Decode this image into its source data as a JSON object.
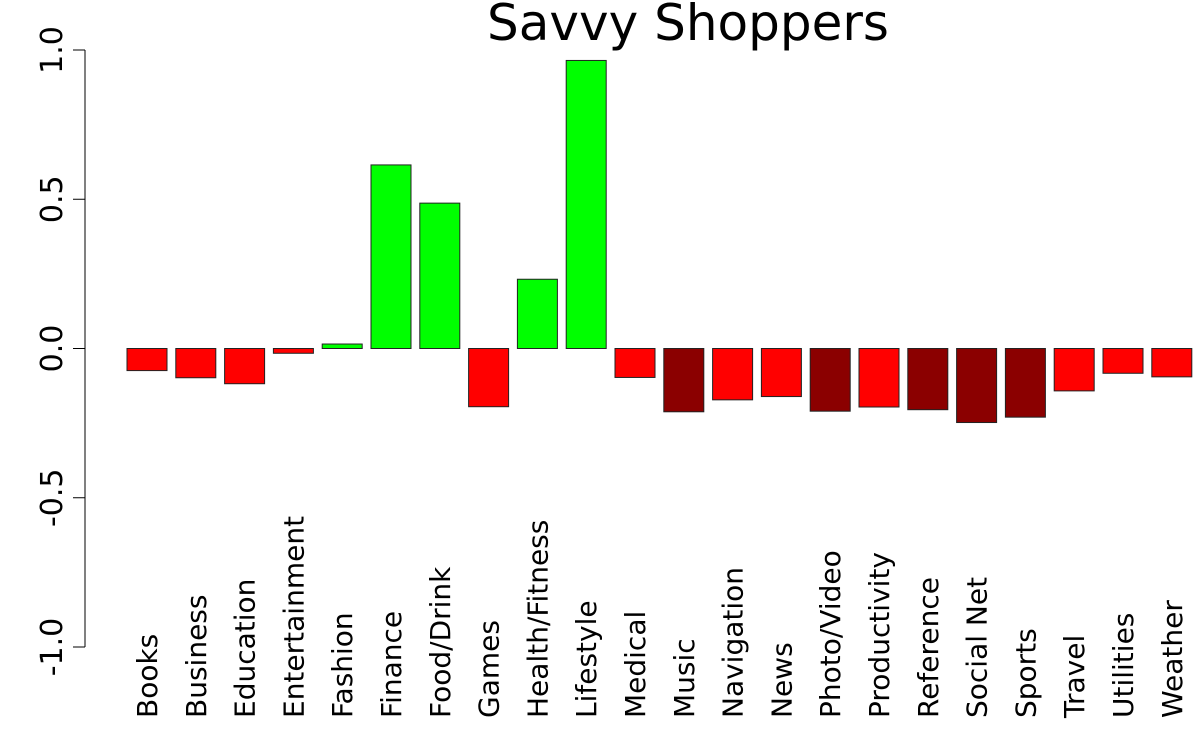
{
  "chart_data": {
    "type": "bar",
    "title": "Savvy Shoppers",
    "xlabel": "",
    "ylabel": "",
    "ylim": [
      -1.0,
      1.0
    ],
    "yticks": [
      "-1.0",
      "-0.5",
      "0.0",
      "0.5",
      "1.0"
    ],
    "grid": false,
    "categories": [
      "Books",
      "Business",
      "Education",
      "Entertainment",
      "Fashion",
      "Finance",
      "Food/Drink",
      "Games",
      "Health/Fitness",
      "Lifestyle",
      "Medical",
      "Music",
      "Navigation",
      "News",
      "Photo/Video",
      "Productivity",
      "Reference",
      "Social Net",
      "Sports",
      "Travel",
      "Utilities",
      "Weather"
    ],
    "values": [
      -0.074,
      -0.098,
      -0.118,
      -0.016,
      0.015,
      0.615,
      0.487,
      -0.195,
      0.232,
      0.965,
      -0.097,
      -0.212,
      -0.172,
      -0.161,
      -0.21,
      -0.196,
      -0.205,
      -0.248,
      -0.23,
      -0.142,
      -0.083,
      -0.095
    ],
    "colors": [
      "#ff0000",
      "#ff0000",
      "#ff0000",
      "#ff0000",
      "#00ff00",
      "#00ff00",
      "#00ff00",
      "#ff0000",
      "#00ff00",
      "#00ff00",
      "#ff0000",
      "#8b0000",
      "#ff0000",
      "#ff0000",
      "#8b0000",
      "#ff0000",
      "#8b0000",
      "#8b0000",
      "#8b0000",
      "#ff0000",
      "#ff0000",
      "#ff0000"
    ]
  }
}
